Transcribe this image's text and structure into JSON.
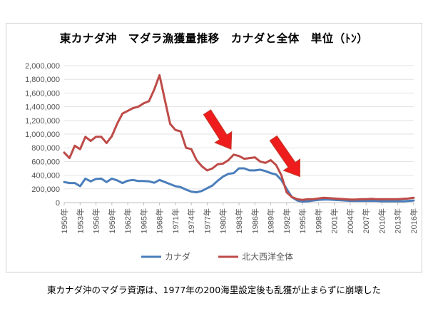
{
  "caption": "東カナダ沖のマダラ資源は、1977年の200海里設定後も乱獲が止まらずに崩壊した",
  "chart_data": {
    "type": "line",
    "title": "東カナダ沖　マダラ漁獲量推移　カナダと全体　単位（ﾄﾝ）",
    "xlabel": "",
    "ylabel": "",
    "ylim": [
      0,
      2000000
    ],
    "yticks": [
      "0",
      "200,000",
      "400,000",
      "600,000",
      "800,000",
      "1,000,000",
      "1,200,000",
      "1,400,000",
      "1,600,000",
      "1,800,000",
      "2,000,000"
    ],
    "xticks": [
      "1950年",
      "1953年",
      "1956年",
      "1959年",
      "1962年",
      "1965年",
      "1968年",
      "1971年",
      "1974年",
      "1977年",
      "1980年",
      "1983年",
      "1986年",
      "1989年",
      "1992年",
      "1995年",
      "1998年",
      "2001年",
      "2004年",
      "2007年",
      "2010年",
      "2013年",
      "2016年"
    ],
    "x": [
      1950,
      1951,
      1952,
      1953,
      1954,
      1955,
      1956,
      1957,
      1958,
      1959,
      1960,
      1961,
      1962,
      1963,
      1964,
      1965,
      1966,
      1967,
      1968,
      1969,
      1970,
      1971,
      1972,
      1973,
      1974,
      1975,
      1976,
      1977,
      1978,
      1979,
      1980,
      1981,
      1982,
      1983,
      1984,
      1985,
      1986,
      1987,
      1988,
      1989,
      1990,
      1991,
      1992,
      1993,
      1994,
      1995,
      1996,
      1997,
      1998,
      1999,
      2000,
      2001,
      2002,
      2003,
      2004,
      2005,
      2006,
      2007,
      2008,
      2009,
      2010,
      2011,
      2012,
      2013,
      2014,
      2015,
      2016
    ],
    "series": [
      {
        "name": "カナダ",
        "color": "#4a7ebb",
        "values": [
          300000,
          285000,
          285000,
          240000,
          350000,
          310000,
          345000,
          350000,
          300000,
          350000,
          325000,
          285000,
          320000,
          330000,
          315000,
          315000,
          310000,
          290000,
          330000,
          300000,
          270000,
          240000,
          225000,
          190000,
          160000,
          150000,
          170000,
          210000,
          250000,
          320000,
          380000,
          420000,
          430000,
          500000,
          500000,
          470000,
          470000,
          480000,
          460000,
          430000,
          410000,
          330000,
          200000,
          80000,
          30000,
          15000,
          20000,
          30000,
          40000,
          45000,
          45000,
          40000,
          35000,
          30000,
          25000,
          25000,
          25000,
          25000,
          25000,
          25000,
          20000,
          20000,
          20000,
          20000,
          20000,
          25000,
          30000
        ]
      },
      {
        "name": "北大西洋全体",
        "color": "#be4b48",
        "values": [
          730000,
          650000,
          830000,
          780000,
          960000,
          900000,
          960000,
          960000,
          870000,
          970000,
          1150000,
          1300000,
          1340000,
          1380000,
          1400000,
          1450000,
          1480000,
          1650000,
          1860000,
          1500000,
          1150000,
          1060000,
          1040000,
          800000,
          780000,
          620000,
          530000,
          470000,
          500000,
          560000,
          570000,
          620000,
          700000,
          680000,
          640000,
          650000,
          660000,
          600000,
          580000,
          620000,
          550000,
          400000,
          150000,
          80000,
          50000,
          40000,
          50000,
          50000,
          60000,
          70000,
          65000,
          60000,
          55000,
          50000,
          45000,
          45000,
          50000,
          50000,
          55000,
          50000,
          50000,
          50000,
          50000,
          50000,
          55000,
          60000,
          70000
        ]
      }
    ],
    "annotations": [
      {
        "type": "arrow",
        "color": "#ee1c1c",
        "from_year": 1977.0,
        "from_value": 1320000,
        "to_year": 1981.5,
        "to_value": 780000
      },
      {
        "type": "arrow",
        "color": "#ee1c1c",
        "from_year": 1989.5,
        "from_value": 940000,
        "to_year": 1994.5,
        "to_value": 380000
      }
    ],
    "grid": "horizontal",
    "legend": "bottom-center"
  }
}
